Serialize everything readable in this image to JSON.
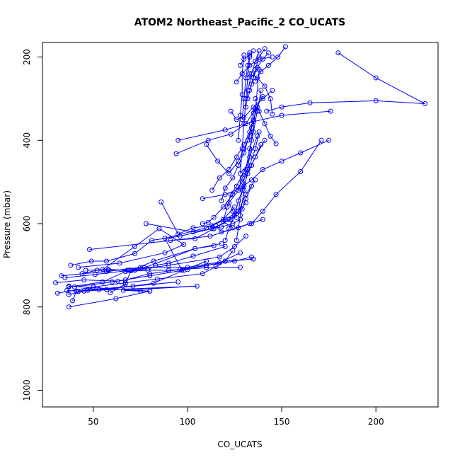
{
  "chart_data": {
    "type": "line",
    "title": "ATOM2 Northeast_Pacific_2 CO_UCATS",
    "xlabel": "CO_UCATS",
    "ylabel": "Pressure (mbar)",
    "xlim": [
      23,
      233
    ],
    "ylim": [
      1040,
      165
    ],
    "y_reversed": true,
    "x_ticks": [
      50,
      100,
      150,
      200
    ],
    "y_ticks": [
      200,
      400,
      600,
      800,
      1000
    ],
    "series_color": "#0000ff",
    "marker": "open-circle",
    "grid": false,
    "series": [
      {
        "x": [
          80,
          37,
          37,
          47,
          50,
          45,
          53,
          95,
          41,
          36
        ],
        "y": [
          762,
          750,
          770,
          760,
          752,
          762,
          758,
          740,
          762,
          760
        ]
      },
      {
        "x": [
          37,
          62,
          80,
          75,
          66,
          105,
          41,
          39
        ],
        "y": [
          800,
          780,
          762,
          762,
          760,
          750,
          762,
          785
        ]
      },
      {
        "x": [
          42,
          64,
          88,
          98,
          85,
          72,
          55
        ],
        "y": [
          705,
          695,
          670,
          650,
          612,
          655,
          710
        ]
      },
      {
        "x": [
          48,
          112,
          140,
          133,
          127,
          118,
          115
        ],
        "y": [
          662,
          630,
          590,
          600,
          610,
          620,
          605
        ]
      },
      {
        "x": [
          33,
          57,
          75,
          100,
          120,
          135
        ],
        "y": [
          725,
          715,
          705,
          705,
          690,
          685
        ]
      },
      {
        "x": [
          40,
          60,
          67,
          80,
          96,
          110,
          125,
          134
        ],
        "y": [
          752,
          740,
          735,
          720,
          710,
          700,
          690,
          680
        ]
      },
      {
        "x": [
          44,
          52,
          58,
          68,
          72,
          90,
          110,
          128
        ],
        "y": [
          720,
          712,
          712,
          712,
          712,
          712,
          706,
          705
        ]
      },
      {
        "x": [
          30,
          45,
          63,
          80,
          100,
          117,
          128
        ],
        "y": [
          742,
          735,
          738,
          725,
          710,
          694,
          670
        ]
      },
      {
        "x": [
          35,
          51,
          70,
          90,
          117,
          125,
          131
        ],
        "y": [
          730,
          722,
          712,
          700,
          680,
          655,
          630
        ]
      },
      {
        "x": [
          31,
          50,
          67,
          84,
          108,
          115,
          120,
          124
        ],
        "y": [
          767,
          752,
          742,
          733,
          720,
          703,
          690,
          665
        ]
      },
      {
        "x": [
          46,
          58,
          69,
          77,
          104,
          118
        ],
        "y": [
          712,
          710,
          712,
          706,
          660,
          648
        ]
      },
      {
        "x": [
          38,
          49,
          57,
          72,
          81,
          96,
          113,
          123,
          127,
          131
        ],
        "y": [
          700,
          690,
          690,
          672,
          640,
          630,
          612,
          590,
          570,
          550
        ]
      },
      {
        "x": [
          37,
          55,
          67,
          79,
          83,
          90,
          103,
          120
        ],
        "y": [
          752,
          740,
          715,
          712,
          700,
          695,
          678,
          655
        ]
      },
      {
        "x": [
          42,
          57,
          71,
          82,
          98,
          110
        ],
        "y": [
          763,
          758,
          750,
          743,
          712,
          690
        ]
      },
      {
        "x": [
          59,
          67,
          70,
          82,
          104,
          114
        ],
        "y": [
          766,
          745,
          713,
          690,
          660,
          653
        ]
      },
      {
        "x": [
          97,
          88,
          110,
          119,
          125
        ],
        "y": [
          712,
          635,
          610,
          590,
          560
        ]
      },
      {
        "x": [
          78,
          103,
          118,
          124,
          128
        ],
        "y": [
          600,
          620,
          608,
          600,
          590
        ]
      },
      {
        "x": [
          91,
          104,
          114,
          122,
          129,
          131,
          134
        ],
        "y": [
          640,
          636,
          612,
          590,
          565,
          540,
          510
        ]
      },
      {
        "x": [
          86,
          95,
          103,
          113,
          120,
          127,
          131,
          136
        ],
        "y": [
          548,
          625,
          610,
          605,
          590,
          570,
          530,
          495
        ]
      },
      {
        "x": [
          108,
          111,
          114,
          119,
          124,
          129,
          134,
          139
        ],
        "y": [
          600,
          597,
          585,
          560,
          530,
          500,
          460,
          410
        ]
      },
      {
        "x": [
          120,
          122,
          125,
          127,
          130,
          132,
          136,
          141
        ],
        "y": [
          640,
          612,
          580,
          545,
          510,
          480,
          440,
          400
        ]
      },
      {
        "x": [
          124,
          119,
          121,
          123,
          126,
          130,
          133,
          137
        ],
        "y": [
          610,
          595,
          560,
          530,
          510,
          475,
          440,
          390
        ]
      },
      {
        "x": [
          126,
          124,
          122,
          127,
          129,
          133,
          136,
          138
        ],
        "y": [
          585,
          570,
          550,
          520,
          490,
          460,
          420,
          380
        ]
      },
      {
        "x": [
          118,
          120,
          124,
          127,
          130,
          132,
          134,
          135
        ],
        "y": [
          545,
          515,
          490,
          460,
          430,
          400,
          370,
          335
        ]
      },
      {
        "x": [
          113,
          117,
          122,
          126,
          130,
          133,
          135,
          137
        ],
        "y": [
          520,
          490,
          470,
          440,
          410,
          380,
          350,
          320
        ]
      },
      {
        "x": [
          110,
          116,
          122,
          127,
          130,
          133,
          134
        ],
        "y": [
          410,
          450,
          480,
          450,
          420,
          390,
          360
        ]
      },
      {
        "x": [
          94,
          111,
          123,
          131,
          136,
          140
        ],
        "y": [
          432,
          400,
          385,
          360,
          325,
          295
        ]
      },
      {
        "x": [
          123,
          126,
          130,
          135,
          140,
          145
        ],
        "y": [
          330,
          350,
          345,
          320,
          300,
          280
        ]
      },
      {
        "x": [
          147,
          144,
          141,
          138,
          136
        ],
        "y": [
          408,
          390,
          360,
          330,
          300
        ]
      },
      {
        "x": [
          127,
          129,
          131,
          133,
          135,
          137,
          139
        ],
        "y": [
          570,
          520,
          470,
          420,
          380,
          330,
          280
        ]
      },
      {
        "x": [
          126,
          128,
          130,
          132,
          134,
          136,
          138
        ],
        "y": [
          640,
          580,
          520,
          470,
          400,
          330,
          230
        ]
      },
      {
        "x": [
          128,
          129,
          130,
          131,
          132,
          133
        ],
        "y": [
          480,
          420,
          360,
          300,
          250,
          200
        ]
      },
      {
        "x": [
          127,
          128,
          129,
          129,
          130
        ],
        "y": [
          400,
          340,
          290,
          240,
          195
        ]
      },
      {
        "x": [
          129,
          130,
          131,
          132,
          133
        ],
        "y": [
          350,
          300,
          250,
          220,
          190
        ]
      },
      {
        "x": [
          131,
          132,
          134,
          136,
          138
        ],
        "y": [
          320,
          280,
          240,
          210,
          185
        ]
      },
      {
        "x": [
          132,
          134,
          136,
          138,
          141
        ],
        "y": [
          300,
          265,
          230,
          200,
          180
        ]
      },
      {
        "x": [
          133,
          135,
          137,
          140,
          143
        ],
        "y": [
          280,
          250,
          225,
          205,
          190
        ]
      },
      {
        "x": [
          126,
          129,
          133,
          138,
          145
        ],
        "y": [
          260,
          240,
          220,
          205,
          200
        ]
      },
      {
        "x": [
          145,
          144,
          141,
          137,
          133
        ],
        "y": [
          337,
          300,
          270,
          250,
          240
        ]
      },
      {
        "x": [
          136,
          139,
          143,
          148,
          152
        ],
        "y": [
          258,
          235,
          220,
          200,
          175
        ]
      },
      {
        "x": [
          128,
          130,
          133,
          135
        ],
        "y": [
          220,
          205,
          195,
          185
        ]
      },
      {
        "x": [
          134,
          140,
          147,
          160,
          171
        ],
        "y": [
          600,
          570,
          530,
          475,
          400
        ]
      },
      {
        "x": [
          108,
          120,
          128,
          134,
          140,
          150,
          160,
          175
        ],
        "y": [
          540,
          530,
          515,
          495,
          470,
          450,
          430,
          400
        ]
      },
      {
        "x": [
          142,
          150,
          165,
          200,
          226,
          200,
          180
        ],
        "y": [
          330,
          320,
          310,
          305,
          312,
          250,
          190
        ]
      },
      {
        "x": [
          95,
          120,
          135,
          150,
          176
        ],
        "y": [
          400,
          375,
          355,
          340,
          330
        ]
      }
    ]
  }
}
